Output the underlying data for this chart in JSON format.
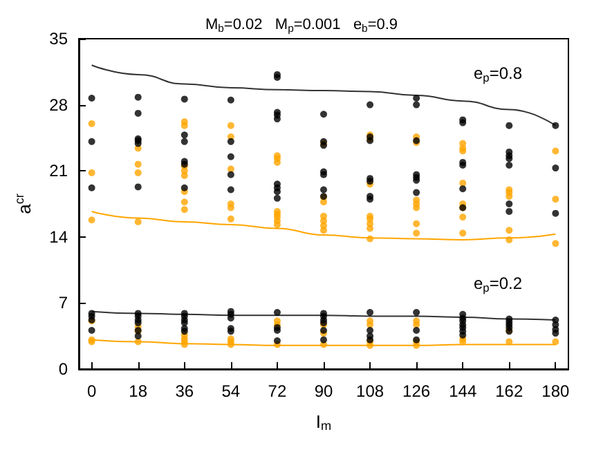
{
  "chart_data": {
    "type": "scatter",
    "title": "M$_{b}$=0.02   M$_{p}$=0.001   e$_{b}$=0.9",
    "xlabel": "I$_{m}$",
    "ylabel": "a$^{cr}$",
    "xlim": [
      -5,
      185
    ],
    "xticks": [
      0,
      18,
      36,
      54,
      72,
      90,
      108,
      126,
      144,
      162,
      180
    ],
    "ylim": [
      0,
      35
    ],
    "yticks": [
      0,
      7,
      14,
      21,
      28,
      35
    ],
    "marker": "circle",
    "annotations": [
      "e$_{p}$=0.8",
      "e$_{p}$=0.2"
    ],
    "series": [
      {
        "color": "#000000",
        "x": [
          0,
          0,
          0,
          0,
          0,
          0,
          0,
          18,
          18,
          18,
          18,
          18,
          18,
          18,
          18,
          18,
          18,
          18,
          18,
          36,
          36,
          36,
          36,
          36,
          36,
          36,
          36,
          36,
          36,
          36,
          36,
          54,
          54,
          54,
          54,
          54,
          54,
          54,
          54,
          54,
          54,
          72,
          72,
          72,
          72,
          72,
          72,
          72,
          72,
          72,
          72,
          72,
          72,
          72,
          90,
          90,
          90,
          90,
          90,
          90,
          90,
          90,
          90,
          90,
          90,
          90,
          90,
          108,
          108,
          108,
          108,
          108,
          108,
          108,
          108,
          108,
          108,
          108,
          126,
          126,
          126,
          126,
          126,
          126,
          126,
          126,
          126,
          126,
          144,
          144,
          144,
          144,
          144,
          144,
          144,
          144,
          144,
          144,
          144,
          144,
          144,
          162,
          162,
          162,
          162,
          162,
          162,
          162,
          162,
          162,
          162,
          162,
          162,
          180,
          180,
          180,
          180,
          180,
          180,
          180
        ],
        "values": [
          28.7,
          24.1,
          19.2,
          5.9,
          5.6,
          5.2,
          4.1,
          28.8,
          27.1,
          24.4,
          24.2,
          23.9,
          19.3,
          5.9,
          5.6,
          5.2,
          4.9,
          4.1,
          3.5,
          28.6,
          24.8,
          24.1,
          22.0,
          21.7,
          19.2,
          5.9,
          5.6,
          5.2,
          4.9,
          4.3,
          4.0,
          28.5,
          24.1,
          22.5,
          20.6,
          19.0,
          6.1,
          5.8,
          5.4,
          4.3,
          4.0,
          31.2,
          30.9,
          27.2,
          26.9,
          26.5,
          19.6,
          19.2,
          18.8,
          18.1,
          6.0,
          4.4,
          4.1,
          3.0,
          27.0,
          24.1,
          23.7,
          20.9,
          20.6,
          19.0,
          18.3,
          5.9,
          5.6,
          5.2,
          4.9,
          4.1,
          3.1,
          28.0,
          24.6,
          24.2,
          20.2,
          19.9,
          18.3,
          18.0,
          6.0,
          4.1,
          3.5,
          3.1,
          28.7,
          28.0,
          24.2,
          20.6,
          20.3,
          20.0,
          18.7,
          6.0,
          4.1,
          3.1,
          26.4,
          26.1,
          21.9,
          21.6,
          19.1,
          17.1,
          5.8,
          5.4,
          5.1,
          4.7,
          4.4,
          4.0,
          3.6,
          25.8,
          23.0,
          22.6,
          22.3,
          21.6,
          17.5,
          16.7,
          5.3,
          5.0,
          4.7,
          4.4,
          4.0,
          25.8,
          21.3,
          16.5,
          5.2,
          4.7,
          4.2,
          3.8
        ]
      },
      {
        "color": "#ffa500",
        "x": [
          0,
          0,
          0,
          0,
          0,
          0,
          18,
          18,
          18,
          18,
          18,
          18,
          18,
          36,
          36,
          36,
          36,
          36,
          36,
          36,
          36,
          36,
          36,
          36,
          36,
          54,
          54,
          54,
          54,
          54,
          54,
          54,
          54,
          54,
          72,
          72,
          72,
          72,
          72,
          72,
          72,
          72,
          72,
          72,
          72,
          90,
          90,
          90,
          90,
          90,
          90,
          90,
          90,
          90,
          90,
          108,
          108,
          108,
          108,
          108,
          108,
          108,
          108,
          108,
          108,
          108,
          108,
          126,
          126,
          126,
          126,
          126,
          126,
          126,
          126,
          126,
          126,
          126,
          144,
          144,
          144,
          144,
          144,
          144,
          144,
          144,
          144,
          144,
          162,
          162,
          162,
          162,
          162,
          162,
          162,
          180,
          180,
          180,
          180
        ],
        "values": [
          26.0,
          20.8,
          15.8,
          5.1,
          3.1,
          2.9,
          23.4,
          21.7,
          20.8,
          15.6,
          4.5,
          4.0,
          2.9,
          26.2,
          25.8,
          21.5,
          21.0,
          20.5,
          18.8,
          17.7,
          16.9,
          3.6,
          3.2,
          2.9,
          2.6,
          25.8,
          24.6,
          21.2,
          17.5,
          17.1,
          15.9,
          3.2,
          2.9,
          2.6,
          22.6,
          22.3,
          21.9,
          16.7,
          16.4,
          16.1,
          15.7,
          15.3,
          5.1,
          4.7,
          2.6,
          23.9,
          18.2,
          17.7,
          16.2,
          15.7,
          15.2,
          14.7,
          4.7,
          3.8,
          2.6,
          24.8,
          24.4,
          19.6,
          16.2,
          15.9,
          15.4,
          14.9,
          13.8,
          5.1,
          4.7,
          2.9,
          2.5,
          24.6,
          24.0,
          17.9,
          17.5,
          17.1,
          15.4,
          14.4,
          5.1,
          4.7,
          2.9,
          2.5,
          23.9,
          23.4,
          23.1,
          19.7,
          17.5,
          17.1,
          16.1,
          14.4,
          3.2,
          2.9,
          19.0,
          18.7,
          18.3,
          14.7,
          13.7,
          4.1,
          2.9,
          23.1,
          18.0,
          13.3,
          2.9
        ]
      },
      {
        "type": "line",
        "color": "#333333",
        "marker": "none",
        "x": [
          0,
          18,
          36,
          54,
          72,
          90,
          108,
          126,
          144,
          162,
          180
        ],
        "values": [
          32.2,
          31.2,
          30.2,
          29.8,
          29.6,
          29.5,
          29.4,
          29.0,
          28.4,
          27.5,
          25.8
        ]
      },
      {
        "type": "line",
        "color": "#ffa500",
        "marker": "none",
        "x": [
          0,
          18,
          36,
          54,
          72,
          90,
          108,
          126,
          144,
          162,
          180
        ],
        "values": [
          16.7,
          16.0,
          15.6,
          15.3,
          14.9,
          14.2,
          13.9,
          13.8,
          13.7,
          13.9,
          14.3
        ]
      },
      {
        "type": "line",
        "color": "#333333",
        "marker": "none",
        "x": [
          0,
          18,
          36,
          54,
          72,
          90,
          108,
          126,
          144,
          162,
          180
        ],
        "values": [
          6.1,
          5.9,
          5.8,
          5.7,
          5.7,
          5.7,
          5.6,
          5.6,
          5.5,
          5.3,
          5.2
        ]
      },
      {
        "type": "line",
        "color": "#ffa500",
        "marker": "none",
        "x": [
          0,
          18,
          36,
          54,
          72,
          90,
          108,
          126,
          144,
          162,
          180
        ],
        "values": [
          3.1,
          2.9,
          2.7,
          2.6,
          2.5,
          2.5,
          2.5,
          2.5,
          2.6,
          2.6,
          2.6
        ]
      }
    ]
  }
}
